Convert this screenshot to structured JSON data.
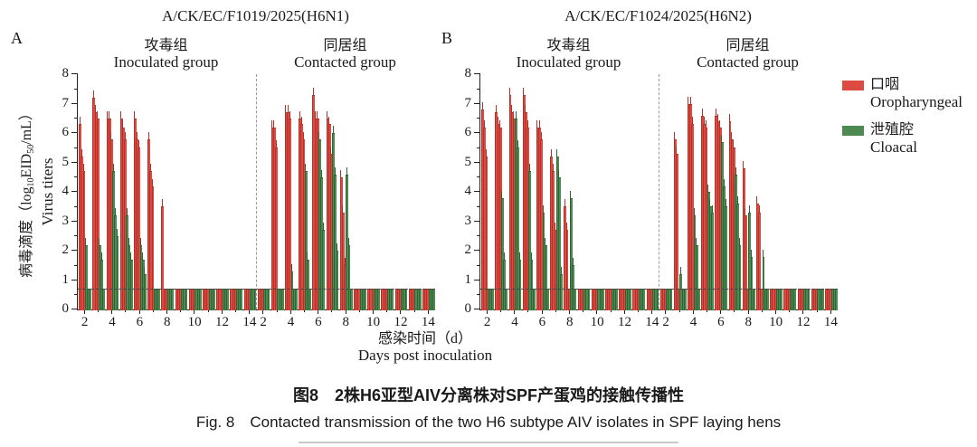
{
  "panel_letters": [
    "A",
    "B"
  ],
  "y_axis": {
    "label_cn_pre": "病毒滴度（log",
    "label_sub1": "10",
    "label_mid": "EID",
    "label_sub2": "50",
    "label_post": "/mL）",
    "label_en": "Virus titers",
    "ticks": [
      0,
      1,
      2,
      3,
      4,
      5,
      6,
      7,
      8
    ]
  },
  "x_axis": {
    "ticks": [
      2,
      4,
      6,
      8,
      10,
      12,
      14
    ],
    "label_cn": "感染时间（d）",
    "label_en": "Days post inoculation"
  },
  "legend": [
    {
      "cn": "口咽",
      "en": "Oropharyngeal",
      "color": "#de4238"
    },
    {
      "cn": "泄殖腔",
      "en": "Cloacal",
      "color": "#49854d"
    }
  ],
  "caption": {
    "cn": "图8　2株H6亚型AIV分离株对SPF产蛋鸡的接触传播性",
    "en": "Fig. 8　Contacted transmission of the two H6 subtype AIV isolates in SPF laying hens"
  },
  "colors": {
    "oropharyngeal_fill": "#de4a42",
    "oropharyngeal_edge": "#b23229",
    "cloacal_fill": "#4d8a52",
    "cloacal_edge": "#2f6336"
  },
  "chart_data": [
    {
      "type": "bar",
      "title": "A/CK/EC/F1019/2025(H6N1)",
      "xlabel": "Days post inoculation 感染时间（d）",
      "ylabel": "病毒滴度（log10EID50/mL） Virus titers",
      "ylim": [
        0,
        8
      ],
      "days": [
        2,
        3,
        4,
        5,
        6,
        7,
        8,
        9,
        10,
        11,
        12,
        13,
        14
      ],
      "detection_limit": 0.7,
      "legend_position": "right",
      "groups": [
        {
          "label_cn": "攻毒组",
          "label_en": "Inoculated group",
          "series": [
            {
              "name": "Oropharyngeal",
              "values": [
                [
                  6.3,
                  5.2,
                  4.7
                ],
                [
                  7.2,
                  6.7,
                  6.5
                ],
                [
                  6.5,
                  6.5,
                  5.8
                ],
                [
                  6.5,
                  6.2,
                  5.8
                ],
                [
                  6.5,
                  5.8,
                  5.5
                ],
                [
                  5.8,
                  4.7,
                  4.2
                ],
                [
                  3.5,
                  0.7,
                  0.7
                ],
                [
                  0.7,
                  0.7,
                  0.7
                ],
                [
                  0.7,
                  0.7,
                  0.7
                ],
                [
                  0.7,
                  0.7,
                  0.7
                ],
                [
                  0.7,
                  0.7,
                  0.7
                ],
                [
                  0.7,
                  0.7,
                  0.7
                ],
                [
                  0.7,
                  0.7,
                  0.7
                ]
              ]
            },
            {
              "name": "Cloacal",
              "values": [
                [
                  2.2,
                  0.7,
                  0.7
                ],
                [
                  2.2,
                  1.7,
                  0.7
                ],
                [
                  4.7,
                  3.2,
                  2.5
                ],
                [
                  3.2,
                  2.2,
                  1.7
                ],
                [
                  2.2,
                  1.7,
                  1.2
                ],
                [
                  0.7,
                  0.7,
                  0.7
                ],
                [
                  0.7,
                  0.7,
                  0.7
                ],
                [
                  0.7,
                  0.7,
                  0.7
                ],
                [
                  0.7,
                  0.7,
                  0.7
                ],
                [
                  0.7,
                  0.7,
                  0.7
                ],
                [
                  0.7,
                  0.7,
                  0.7
                ],
                [
                  0.7,
                  0.7,
                  0.7
                ],
                [
                  0.7,
                  0.7,
                  0.7
                ]
              ]
            }
          ]
        },
        {
          "label_cn": "同居组",
          "label_en": "Contacted group",
          "series": [
            {
              "name": "Oropharyngeal",
              "values": [
                [
                  0.7,
                  0.7,
                  0.7
                ],
                [
                  6.2,
                  6.2,
                  5.5
                ],
                [
                  6.7,
                  6.7,
                  6.5
                ],
                [
                  6.5,
                  6.3,
                  5.8
                ],
                [
                  7.3,
                  6.5,
                  6.5
                ],
                [
                  6.5,
                  6.3,
                  5.3
                ],
                [
                  4.5,
                  3.3,
                  1.5
                ],
                [
                  0.7,
                  0.7,
                  0.7
                ],
                [
                  0.7,
                  0.7,
                  0.7
                ],
                [
                  0.7,
                  0.7,
                  0.7
                ],
                [
                  0.7,
                  0.7,
                  0.7
                ],
                [
                  0.7,
                  0.7,
                  0.7
                ],
                [
                  0.7,
                  0.7,
                  0.7
                ]
              ]
            },
            {
              "name": "Cloacal",
              "values": [
                [
                  0.7,
                  0.7,
                  0.7
                ],
                [
                  0.7,
                  0.7,
                  0.7
                ],
                [
                  1.3,
                  0.7,
                  0.7
                ],
                [
                  4.7,
                  1.7,
                  0.7
                ],
                [
                  5.8,
                  4.5,
                  2.7
                ],
                [
                  6.0,
                  4.6,
                  2.0
                ],
                [
                  4.6,
                  2.2,
                  0.7
                ],
                [
                  0.7,
                  0.7,
                  0.7
                ],
                [
                  0.7,
                  0.7,
                  0.7
                ],
                [
                  0.7,
                  0.7,
                  0.7
                ],
                [
                  0.7,
                  0.7,
                  0.7
                ],
                [
                  0.7,
                  0.7,
                  0.7
                ],
                [
                  0.7,
                  0.7,
                  0.7
                ]
              ]
            }
          ]
        }
      ]
    },
    {
      "type": "bar",
      "title": "A/CK/EC/F1024/2025(H6N2)",
      "xlabel": "Days post inoculation 感染时间（d）",
      "ylabel": "病毒滴度（log10EID50/mL） Virus titers",
      "ylim": [
        0,
        8
      ],
      "days": [
        2,
        3,
        4,
        5,
        6,
        7,
        8,
        9,
        10,
        11,
        12,
        13,
        14
      ],
      "detection_limit": 0.7,
      "legend_position": "right",
      "groups": [
        {
          "label_cn": "攻毒组",
          "label_en": "Inoculated group",
          "series": [
            {
              "name": "Oropharyngeal",
              "values": [
                [
                  6.8,
                  6.2,
                  5.2
                ],
                [
                  6.7,
                  6.3,
                  6.2
                ],
                [
                  7.3,
                  6.7,
                  6.5
                ],
                [
                  7.3,
                  6.7,
                  6.2
                ],
                [
                  6.2,
                  6.2,
                  5.8
                ],
                [
                  5.2,
                  4.7,
                  2.7
                ],
                [
                  3.5,
                  2.7,
                  0.7
                ],
                [
                  0.7,
                  0.7,
                  0.7
                ],
                [
                  0.7,
                  0.7,
                  0.7
                ],
                [
                  0.7,
                  0.7,
                  0.7
                ],
                [
                  0.7,
                  0.7,
                  0.7
                ],
                [
                  0.7,
                  0.7,
                  0.7
                ],
                [
                  0.7,
                  0.7,
                  0.7
                ]
              ]
            },
            {
              "name": "Cloacal",
              "values": [
                [
                  0.7,
                  0.7,
                  0.7
                ],
                [
                  3.8,
                  1.7,
                  0.7
                ],
                [
                  6.5,
                  5.5,
                  1.7
                ],
                [
                  4.7,
                  1.7,
                  0.7
                ],
                [
                  3.3,
                  2.2,
                  0.7
                ],
                [
                  5.2,
                  4.5,
                  1.2
                ],
                [
                  3.8,
                  1.5,
                  0.7
                ],
                [
                  0.7,
                  0.7,
                  0.7
                ],
                [
                  0.7,
                  0.7,
                  0.7
                ],
                [
                  0.7,
                  0.7,
                  0.7
                ],
                [
                  0.7,
                  0.7,
                  0.7
                ],
                [
                  0.7,
                  0.7,
                  0.7
                ],
                [
                  0.7,
                  0.7,
                  0.7
                ]
              ]
            }
          ]
        },
        {
          "label_cn": "同居组",
          "label_en": "Contacted group",
          "series": [
            {
              "name": "Oropharyngeal",
              "values": [
                [
                  0.7,
                  0.7,
                  0.7
                ],
                [
                  5.8,
                  5.3,
                  0.7
                ],
                [
                  7.0,
                  7.0,
                  6.3
                ],
                [
                  6.6,
                  6.3,
                  6.2
                ],
                [
                  6.6,
                  6.4,
                  6.2
                ],
                [
                  6.4,
                  5.8,
                  5.5
                ],
                [
                  4.8,
                  3.2,
                  0.7
                ],
                [
                  3.6,
                  3.3,
                  0.7
                ],
                [
                  0.7,
                  0.7,
                  0.7
                ],
                [
                  0.7,
                  0.7,
                  0.7
                ],
                [
                  0.7,
                  0.7,
                  0.7
                ],
                [
                  0.7,
                  0.7,
                  0.7
                ],
                [
                  0.7,
                  0.7,
                  0.7
                ]
              ]
            },
            {
              "name": "Cloacal",
              "values": [
                [
                  0.7,
                  0.7,
                  0.7
                ],
                [
                  1.2,
                  0.7,
                  0.7
                ],
                [
                  3.2,
                  2.2,
                  0.7
                ],
                [
                  4.0,
                  3.5,
                  3.3
                ],
                [
                  5.7,
                  4.2,
                  3.5
                ],
                [
                  4.6,
                  3.6,
                  2.2
                ],
                [
                  3.3,
                  1.8,
                  0.7
                ],
                [
                  1.8,
                  0.7,
                  0.7
                ],
                [
                  0.7,
                  0.7,
                  0.7
                ],
                [
                  0.7,
                  0.7,
                  0.7
                ],
                [
                  0.7,
                  0.7,
                  0.7
                ],
                [
                  0.7,
                  0.7,
                  0.7
                ],
                [
                  0.7,
                  0.7,
                  0.7
                ]
              ]
            }
          ]
        }
      ]
    }
  ]
}
